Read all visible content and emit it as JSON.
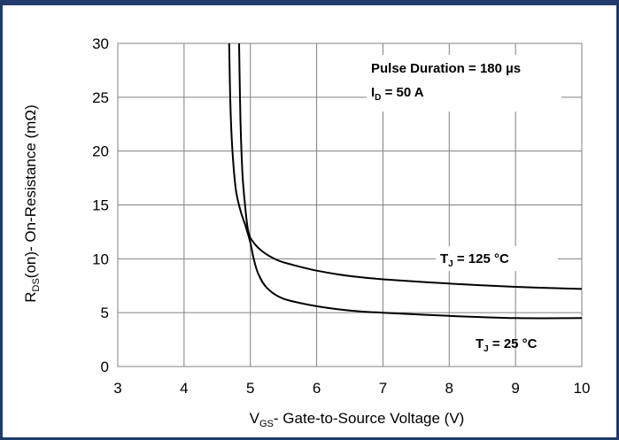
{
  "chart_data": {
    "type": "line",
    "title": "",
    "xlabel": {
      "main": "V",
      "sub": "GS",
      "rest": "- Gate-to-Source Voltage (V)"
    },
    "ylabel": {
      "main": "R",
      "sub": "DS",
      "rest": "(on)- On-Resistance (mΩ)"
    },
    "xlim": [
      3,
      10
    ],
    "ylim": [
      0,
      30
    ],
    "xticks": [
      3,
      4,
      5,
      6,
      7,
      8,
      9,
      10
    ],
    "yticks": [
      0,
      5,
      10,
      15,
      20,
      25,
      30
    ],
    "grid": true,
    "annotations": {
      "line1": "Pulse Duration = 180 µs",
      "line2_main": "I",
      "line2_sub": "D",
      "line2_rest": " = 50 A"
    },
    "series": [
      {
        "name": "TJ = 125 °C",
        "label": {
          "main": "T",
          "sub": "J",
          "rest": " = 125 °C"
        },
        "color": "#000000",
        "points": [
          [
            4.83,
            30
          ],
          [
            4.85,
            23
          ],
          [
            4.88,
            18
          ],
          [
            4.92,
            15
          ],
          [
            4.97,
            12.5
          ],
          [
            5.05,
            11.5
          ],
          [
            5.2,
            10.6
          ],
          [
            5.4,
            9.9
          ],
          [
            5.6,
            9.5
          ],
          [
            6.0,
            8.9
          ],
          [
            6.5,
            8.4
          ],
          [
            7.0,
            8.1
          ],
          [
            8.0,
            7.7
          ],
          [
            9.0,
            7.4
          ],
          [
            10.0,
            7.2
          ]
        ]
      },
      {
        "name": "TJ = 25 °C",
        "label": {
          "main": "T",
          "sub": "J",
          "rest": " = 25 °C"
        },
        "color": "#000000",
        "points": [
          [
            4.68,
            30
          ],
          [
            4.7,
            24
          ],
          [
            4.73,
            20
          ],
          [
            4.78,
            16.5
          ],
          [
            4.85,
            14.5
          ],
          [
            4.93,
            13
          ],
          [
            5.0,
            11.5
          ],
          [
            5.05,
            10
          ],
          [
            5.12,
            8.6
          ],
          [
            5.25,
            7.3
          ],
          [
            5.5,
            6.3
          ],
          [
            6.0,
            5.6
          ],
          [
            6.5,
            5.2
          ],
          [
            7.0,
            5.0
          ],
          [
            8.0,
            4.7
          ],
          [
            9.0,
            4.5
          ],
          [
            10.0,
            4.5
          ]
        ]
      }
    ]
  }
}
